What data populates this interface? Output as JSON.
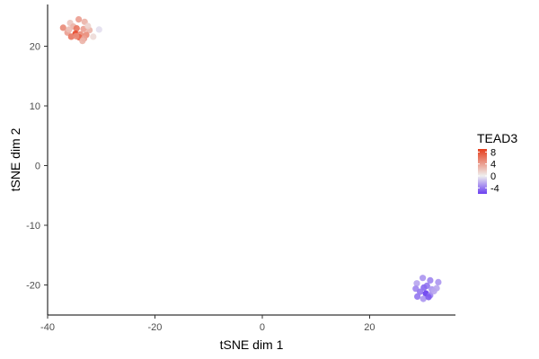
{
  "chart_data": {
    "type": "scatter",
    "xlabel": "tSNE dim 1",
    "ylabel": "tSNE dim 2",
    "xlim": [
      -40,
      36
    ],
    "ylim": [
      -25,
      27
    ],
    "xticks": [
      -40,
      -20,
      0,
      20
    ],
    "yticks": [
      -20,
      -10,
      0,
      10,
      20
    ],
    "grid": false,
    "legend": {
      "title": "TEAD3",
      "placement": "right",
      "type": "colorbar",
      "range": [
        -6,
        9
      ],
      "ticks": [
        8,
        4,
        0,
        -4
      ],
      "colors": {
        "low": "#6a3ff0",
        "mid": "#efefef",
        "high": "#e53d1d"
      }
    },
    "points": [
      {
        "x": -34.2,
        "y": 24.5,
        "value": 4.0
      },
      {
        "x": -33.1,
        "y": 24.1,
        "value": 3.0
      },
      {
        "x": -35.8,
        "y": 23.9,
        "value": 2.0
      },
      {
        "x": -37.1,
        "y": 23.1,
        "value": 5.0
      },
      {
        "x": -35.2,
        "y": 23.3,
        "value": 3.0
      },
      {
        "x": -34.6,
        "y": 23.0,
        "value": 6.0
      },
      {
        "x": -33.3,
        "y": 22.9,
        "value": 4.0
      },
      {
        "x": -32.2,
        "y": 22.7,
        "value": 3.0
      },
      {
        "x": -30.4,
        "y": 22.8,
        "value": -0.5
      },
      {
        "x": -36.3,
        "y": 22.3,
        "value": 4.0
      },
      {
        "x": -34.8,
        "y": 22.1,
        "value": 8.5
      },
      {
        "x": -33.9,
        "y": 22.0,
        "value": 5.0
      },
      {
        "x": -32.8,
        "y": 21.9,
        "value": 5.0
      },
      {
        "x": -35.6,
        "y": 21.6,
        "value": 6.0
      },
      {
        "x": -34.1,
        "y": 21.5,
        "value": 7.0
      },
      {
        "x": -33.2,
        "y": 21.3,
        "value": 4.0
      },
      {
        "x": -34.7,
        "y": 21.7,
        "value": 5.0
      },
      {
        "x": -36.0,
        "y": 22.8,
        "value": 2.5
      },
      {
        "x": -32.5,
        "y": 23.4,
        "value": 1.5
      },
      {
        "x": -31.5,
        "y": 21.6,
        "value": 1.0
      },
      {
        "x": -33.5,
        "y": 20.9,
        "value": 3.0
      },
      {
        "x": 29.9,
        "y": -18.8,
        "value": -3.0
      },
      {
        "x": 31.3,
        "y": -19.2,
        "value": -3.5
      },
      {
        "x": 28.8,
        "y": -19.7,
        "value": -2.5
      },
      {
        "x": 32.8,
        "y": -19.5,
        "value": -3.0
      },
      {
        "x": 30.7,
        "y": -20.1,
        "value": -4.0
      },
      {
        "x": 28.6,
        "y": -20.6,
        "value": -3.5
      },
      {
        "x": 30.1,
        "y": -20.4,
        "value": -4.5
      },
      {
        "x": 31.6,
        "y": -20.7,
        "value": -3.0
      },
      {
        "x": 32.5,
        "y": -20.5,
        "value": -2.5
      },
      {
        "x": 29.4,
        "y": -21.1,
        "value": -4.0
      },
      {
        "x": 30.5,
        "y": -21.4,
        "value": -6.0
      },
      {
        "x": 31.3,
        "y": -21.7,
        "value": -3.5
      },
      {
        "x": 28.9,
        "y": -21.9,
        "value": -4.0
      },
      {
        "x": 30.0,
        "y": -22.3,
        "value": -3.0
      },
      {
        "x": 32.0,
        "y": -21.0,
        "value": -2.5
      },
      {
        "x": 31.0,
        "y": -22.0,
        "value": -5.0
      }
    ]
  }
}
